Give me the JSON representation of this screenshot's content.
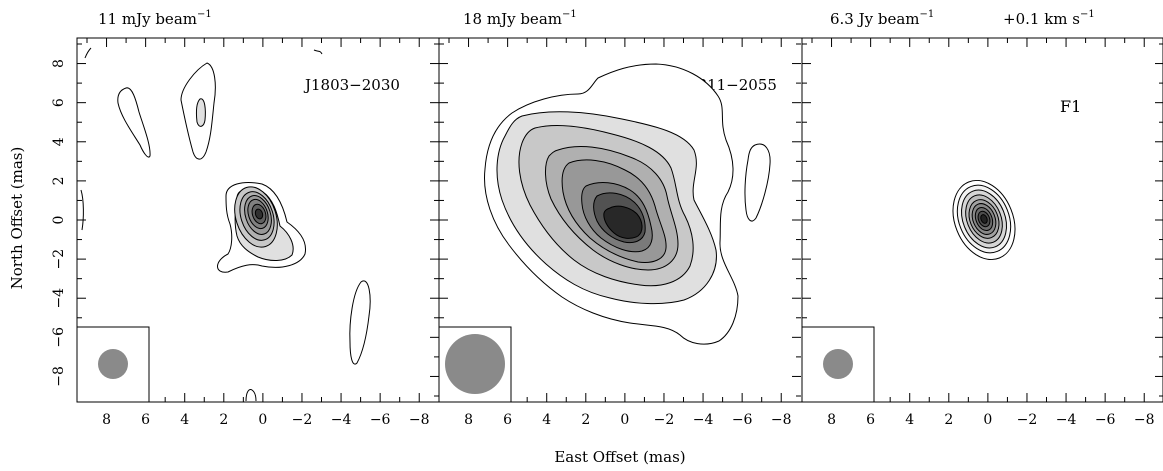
{
  "figure": {
    "xlabel": "East Offset (mas)",
    "ylabel": "North Offset (mas)"
  },
  "panels": [
    {
      "header_left": "11 mJy beam",
      "header_left_exp": "−1",
      "label": "J1803−2030",
      "header_right": "",
      "header_right_exp": ""
    },
    {
      "header_left": "18 mJy beam",
      "header_left_exp": "−1",
      "label": "J1811−2055",
      "header_right": "",
      "header_right_exp": ""
    },
    {
      "header_left": "6.3 Jy beam",
      "header_left_exp": "−1",
      "label": "F1",
      "header_right": "+0.1  km s",
      "header_right_exp": "−1"
    }
  ],
  "chart_data": {
    "type": "contour",
    "xlabel": "East Offset (mas)",
    "ylabel": "North Offset (mas)",
    "xlim": [
      9,
      -8.5
    ],
    "ylim": [
      -9,
      9
    ],
    "x_ticks": [
      8,
      6,
      4,
      2,
      0,
      -2,
      -4,
      -6,
      -8
    ],
    "y_ticks": [
      -8,
      -6,
      -4,
      -2,
      0,
      2,
      4,
      6,
      8
    ],
    "x_tick_labels": [
      "8",
      "6",
      "4",
      "2",
      "0",
      "−2",
      "−4",
      "−6",
      "−8"
    ],
    "y_tick_labels": [
      "−8",
      "−6",
      "−4",
      "−2",
      "0",
      "2",
      "4",
      "6",
      "8"
    ],
    "beam_color": "#8a8a8a",
    "panels": [
      {
        "name": "J1803−2030",
        "peak": "11 mJy beam−1",
        "peak_offset": [
          0.1,
          0.2
        ],
        "beam_diameter_mas": 3
      },
      {
        "name": "J1811−2055",
        "peak": "18 mJy beam−1",
        "peak_offset": [
          0,
          -0.3
        ],
        "beam_diameter_mas": 6
      },
      {
        "name": "F1",
        "peak": "6.3 Jy beam−1",
        "velocity": "+0.1 km s−1",
        "peak_offset": [
          0,
          0
        ],
        "beam_diameter_mas": 3
      }
    ]
  }
}
